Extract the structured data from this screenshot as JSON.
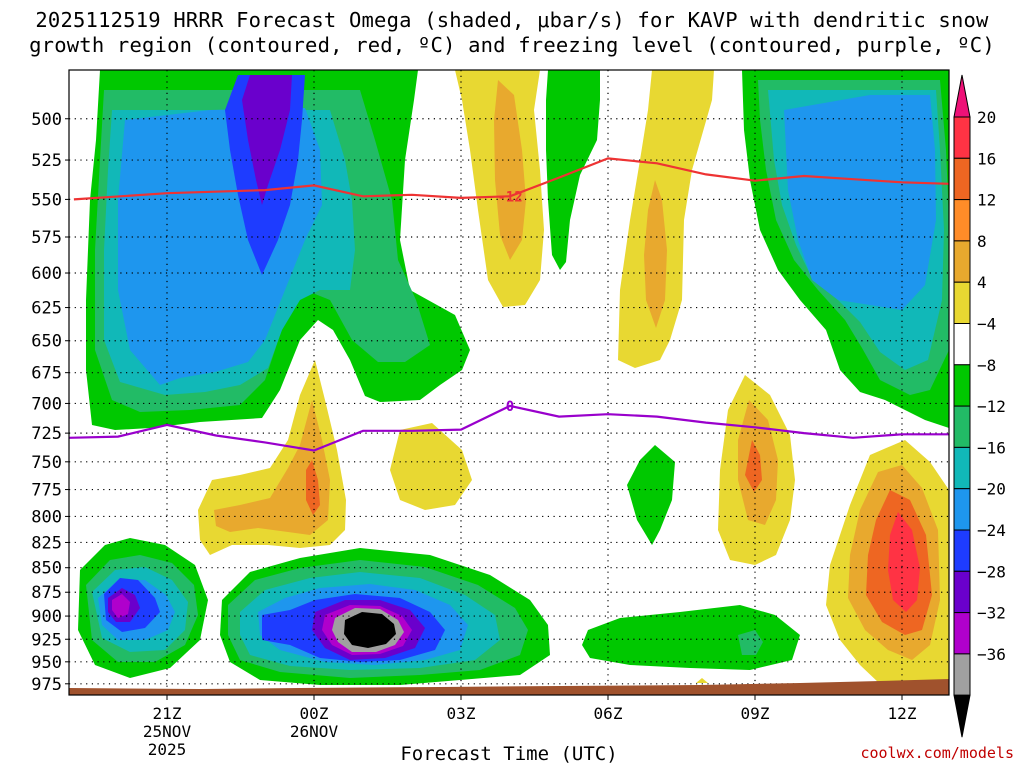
{
  "title": {
    "line1": "2025112519 HRRR Forecast Omega (shaded, μbar/s) for KAVP with dendritic snow",
    "line2": "growth region (contoured, red, ºC) and freezing level (contoured, purple, ºC)"
  },
  "attribution": "coolwx.com/models",
  "chart_data": {
    "type": "heatmap",
    "title": "2025112519 HRRR Forecast Omega (shaded, μbar/s) for KAVP with dendritic snow growth region (contoured, red, ºC) and freezing level (contoured, purple, ºC)",
    "xlabel": "Forecast Time (UTC)",
    "ylabel": "",
    "x_range_utc": [
      "2025-11-25 19Z",
      "2025-11-26 13Z"
    ],
    "y_range_mb": [
      988,
      472
    ],
    "y_scale": "log-pressure (top is lower pressure)",
    "y_ticks": [
      500,
      525,
      550,
      575,
      600,
      625,
      650,
      675,
      700,
      725,
      750,
      775,
      800,
      825,
      850,
      875,
      900,
      925,
      950,
      975
    ],
    "x_ticks": [
      {
        "hour": 2,
        "label": "21Z",
        "sub1": "25NOV",
        "sub2": "2025"
      },
      {
        "hour": 5,
        "label": "00Z",
        "sub1": "26NOV",
        "sub2": ""
      },
      {
        "hour": 8,
        "label": "03Z",
        "sub1": "",
        "sub2": ""
      },
      {
        "hour": 11,
        "label": "06Z",
        "sub1": "",
        "sub2": ""
      },
      {
        "hour": 14,
        "label": "09Z",
        "sub1": "",
        "sub2": ""
      },
      {
        "hour": 17,
        "label": "12Z",
        "sub1": "",
        "sub2": ""
      }
    ],
    "grid": true,
    "colorbar": {
      "position": "right",
      "levels": [
        20,
        16,
        12,
        8,
        4,
        -4,
        -8,
        -12,
        -16,
        -20,
        -24,
        -28,
        -32,
        -36
      ],
      "colors": [
        "#ff3344",
        "#ee6622",
        "#ff8c28",
        "#e8a92e",
        "#e8d832",
        "#ffffff",
        "#00c800",
        "#22bb66",
        "#11b8b8",
        "#1e96ee",
        "#1e3cff",
        "#6a00cc",
        "#b000cc",
        "#a0a0a0",
        "#000000"
      ],
      "top_arrow_color": "#ee1177",
      "bottom_arrow_color": "#000000"
    },
    "fill_colors": {
      "plus_4_to_8": "#e8d832",
      "plus_8_to_12": "#e8a92e",
      "plus_12_to_16": "#ee6622",
      "plus_16_to_20": "#ff3344",
      "minus_4_to_8": "#00c800",
      "minus_8_to_12": "#22bb66",
      "minus_12_to_16": "#11b8b8",
      "minus_16_to_20": "#1e96ee",
      "minus_20_to_24": "#1e3cff",
      "minus_24_to_28": "#6a00cc",
      "minus_28_to_32": "#b000cc",
      "minus_32_to_36": "#a0a0a0",
      "below_minus_36": "#000000",
      "terrain": "#a0522d"
    },
    "series": [
      {
        "name": "-12",
        "color": "#ee3333",
        "points": [
          [
            0.1,
            550
          ],
          [
            2,
            546
          ],
          [
            4,
            544
          ],
          [
            5,
            541
          ],
          [
            6,
            548
          ],
          [
            7,
            547
          ],
          [
            8,
            549
          ],
          [
            9,
            548
          ],
          [
            10,
            536
          ],
          [
            11,
            524
          ],
          [
            12,
            527
          ],
          [
            13,
            534
          ],
          [
            14,
            538
          ],
          [
            15,
            535
          ],
          [
            16,
            537
          ],
          [
            17,
            539
          ],
          [
            18,
            540
          ]
        ]
      },
      {
        "name": "0",
        "color": "#9900cc",
        "points": [
          [
            0,
            729
          ],
          [
            1,
            728
          ],
          [
            2,
            718
          ],
          [
            3,
            727
          ],
          [
            4,
            733
          ],
          [
            5,
            740
          ],
          [
            6,
            723
          ],
          [
            7,
            723
          ],
          [
            8,
            722
          ],
          [
            9,
            702
          ],
          [
            10,
            711
          ],
          [
            11,
            709
          ],
          [
            12,
            711
          ],
          [
            13,
            716
          ],
          [
            14,
            720
          ],
          [
            15,
            725
          ],
          [
            16,
            729
          ],
          [
            17,
            726
          ],
          [
            18,
            726
          ]
        ]
      }
    ]
  }
}
